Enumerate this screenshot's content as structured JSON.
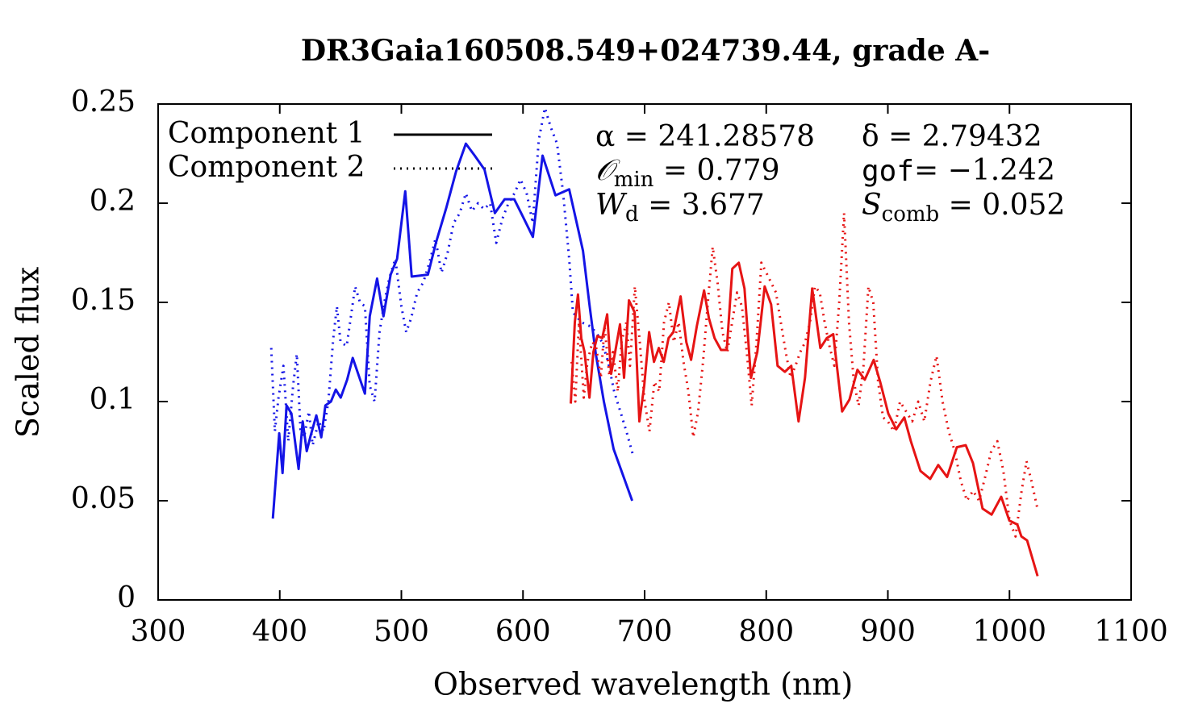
{
  "chart_data": {
    "type": "line",
    "title": "DR3Gaia160508.549+024739.44, grade A-",
    "xlabel": "Observed wavelength (nm)",
    "ylabel": "Scaled flux",
    "xlim": [
      300,
      1100
    ],
    "xticks": [
      300,
      400,
      500,
      600,
      700,
      800,
      900,
      1000,
      1100
    ],
    "ylim": [
      0,
      0.25
    ],
    "yticks": [
      0,
      0.05,
      0.1,
      0.15,
      0.2,
      0.25
    ],
    "annotations": [
      {
        "text": "α = 241.28578"
      },
      {
        "text": "δ = 2.79432"
      },
      {
        "symbol": "𝒪",
        "sub": "min",
        "text": " = 0.779"
      },
      {
        "symbol": "gof",
        "text": "= −1.242"
      },
      {
        "symbol": "W",
        "sub": "d",
        "text": " = 3.677"
      },
      {
        "symbol": "S",
        "sub": "comb",
        "text": " = 0.052"
      }
    ],
    "series": [
      {
        "name": "Component 1",
        "color": "#1414e6",
        "dash": "solid",
        "x": [
          394.3,
          399.6,
          402.3,
          405.6,
          409.6,
          415.5,
          418.9,
          422.2,
          425.5,
          430.1,
          434.1,
          437.5,
          442.1,
          446.1,
          450.1,
          455.4,
          460.0,
          470.0,
          474.0,
          480.0,
          485.3,
          491.2,
          496.5,
          503.2,
          508.5,
          521.8,
          528.4,
          537.1,
          545.0,
          553.0,
          560.3,
          568.3,
          576.9,
          584.9,
          592.8,
          600.1,
          608.1,
          616.1,
          626.7,
          638.0,
          649.3,
          654.6,
          659.9,
          666.5,
          674.5,
          689.8
        ],
        "values": [
          0.041,
          0.084,
          0.064,
          0.098,
          0.094,
          0.066,
          0.09,
          0.075,
          0.083,
          0.093,
          0.082,
          0.098,
          0.1,
          0.106,
          0.102,
          0.111,
          0.122,
          0.104,
          0.143,
          0.162,
          0.143,
          0.164,
          0.172,
          0.206,
          0.163,
          0.164,
          0.18,
          0.198,
          0.216,
          0.23,
          0.224,
          0.217,
          0.195,
          0.202,
          0.202,
          0.193,
          0.183,
          0.224,
          0.204,
          0.207,
          0.176,
          0.149,
          0.124,
          0.1,
          0.076,
          0.05
        ]
      },
      {
        "name": "Component 2",
        "color": "#1414e6",
        "dash": "dotted",
        "x": [
          393,
          396,
          399,
          403,
          407,
          411,
          414,
          417,
          420,
          424,
          427,
          432,
          436,
          440,
          444,
          447,
          450,
          455,
          459,
          462,
          466,
          470,
          474,
          478,
          482,
          486,
          490,
          495,
          500,
          504,
          508,
          513,
          518,
          523,
          528,
          533,
          538,
          543,
          548,
          553,
          558,
          563,
          568,
          573,
          578,
          583,
          588,
          593,
          598,
          603,
          608,
          613,
          618,
          623,
          628,
          633,
          638,
          641,
          648,
          655,
          660,
          665,
          670,
          675,
          680,
          685,
          690
        ],
        "values": [
          0.127,
          0.085,
          0.102,
          0.118,
          0.08,
          0.108,
          0.124,
          0.086,
          0.082,
          0.095,
          0.078,
          0.09,
          0.085,
          0.1,
          0.132,
          0.148,
          0.13,
          0.128,
          0.145,
          0.158,
          0.15,
          0.148,
          0.108,
          0.1,
          0.135,
          0.15,
          0.162,
          0.172,
          0.148,
          0.135,
          0.142,
          0.155,
          0.16,
          0.17,
          0.182,
          0.165,
          0.175,
          0.19,
          0.195,
          0.205,
          0.196,
          0.2,
          0.197,
          0.2,
          0.18,
          0.192,
          0.2,
          0.205,
          0.212,
          0.205,
          0.19,
          0.232,
          0.248,
          0.238,
          0.23,
          0.205,
          0.172,
          0.145,
          0.14,
          0.138,
          0.135,
          0.13,
          0.12,
          0.105,
          0.095,
          0.085,
          0.074
        ]
      },
      {
        "color": "#e61414",
        "dash": "solid",
        "x": [
          639.3,
          642.6,
          645.2,
          647.9,
          650.6,
          654.6,
          657.9,
          661.2,
          665.2,
          669.2,
          672.5,
          675.8,
          679.8,
          683.1,
          687.1,
          691.8,
          695.7,
          699.7,
          703.7,
          707.7,
          711.7,
          715.7,
          719.7,
          723.6,
          729.6,
          734.3,
          738.2,
          742.9,
          748.9,
          752.9,
          757.5,
          762.8,
          767.5,
          772.1,
          777.4,
          782.1,
          787.4,
          792.7,
          798.7,
          804.0,
          809.3,
          815.3,
          820.6,
          826.6,
          831.9,
          837.8,
          844.5,
          849.8,
          855.1,
          862.4,
          868.4,
          875.0,
          881.0,
          888.3,
          893.6,
          900.3,
          906.9,
          913.5,
          918.9,
          926.8,
          934.8,
          941.4,
          948.7,
          956.7,
          964.0,
          970.0,
          977.9,
          985.3,
          993.2,
          999.9,
          1006.5,
          1009.8,
          1014.5,
          1023.1
        ],
        "values": [
          0.099,
          0.14,
          0.154,
          0.132,
          0.125,
          0.102,
          0.125,
          0.133,
          0.132,
          0.144,
          0.114,
          0.125,
          0.139,
          0.112,
          0.151,
          0.145,
          0.09,
          0.108,
          0.135,
          0.12,
          0.127,
          0.12,
          0.132,
          0.135,
          0.153,
          0.13,
          0.121,
          0.138,
          0.156,
          0.142,
          0.132,
          0.126,
          0.126,
          0.167,
          0.17,
          0.157,
          0.112,
          0.125,
          0.158,
          0.149,
          0.118,
          0.115,
          0.118,
          0.09,
          0.112,
          0.157,
          0.127,
          0.132,
          0.134,
          0.095,
          0.101,
          0.116,
          0.111,
          0.121,
          0.11,
          0.094,
          0.086,
          0.092,
          0.08,
          0.065,
          0.061,
          0.068,
          0.062,
          0.077,
          0.078,
          0.069,
          0.046,
          0.043,
          0.052,
          0.04,
          0.038,
          0.032,
          0.03,
          0.012
        ]
      },
      {
        "color": "#e61414",
        "dash": "dotted",
        "x": [
          640,
          643,
          646,
          650,
          653,
          657,
          660,
          664,
          667,
          671,
          674,
          678,
          681,
          685,
          688,
          692,
          696,
          700,
          704,
          708,
          712,
          716,
          720,
          724,
          728,
          732,
          736,
          740,
          744,
          748,
          752,
          756,
          760,
          764,
          768,
          772,
          776,
          780,
          784,
          788,
          792,
          796,
          800,
          804,
          808,
          812,
          816,
          820,
          824,
          828,
          832,
          836,
          840,
          844,
          848,
          852,
          856,
          860,
          864,
          868,
          872,
          876,
          880,
          884,
          888,
          892,
          896,
          900,
          905,
          910,
          915,
          920,
          925,
          930,
          935,
          940,
          945,
          950,
          955,
          960,
          965,
          970,
          975,
          980,
          985,
          990,
          995,
          1000,
          1005,
          1010,
          1014,
          1018,
          1023
        ],
        "values": [
          0.12,
          0.1,
          0.14,
          0.102,
          0.12,
          0.13,
          0.128,
          0.112,
          0.138,
          0.113,
          0.125,
          0.105,
          0.13,
          0.14,
          0.118,
          0.158,
          0.13,
          0.1,
          0.085,
          0.11,
          0.105,
          0.14,
          0.15,
          0.13,
          0.14,
          0.12,
          0.105,
          0.082,
          0.095,
          0.12,
          0.15,
          0.178,
          0.16,
          0.135,
          0.125,
          0.14,
          0.155,
          0.148,
          0.125,
          0.098,
          0.13,
          0.17,
          0.165,
          0.16,
          0.155,
          0.14,
          0.125,
          0.112,
          0.118,
          0.125,
          0.13,
          0.14,
          0.158,
          0.155,
          0.14,
          0.128,
          0.118,
          0.15,
          0.195,
          0.14,
          0.11,
          0.098,
          0.118,
          0.158,
          0.15,
          0.11,
          0.092,
          0.09,
          0.085,
          0.1,
          0.095,
          0.09,
          0.1,
          0.09,
          0.11,
          0.123,
          0.1,
          0.085,
          0.075,
          0.06,
          0.05,
          0.055,
          0.05,
          0.062,
          0.075,
          0.08,
          0.065,
          0.04,
          0.032,
          0.055,
          0.07,
          0.06,
          0.046
        ]
      }
    ]
  }
}
